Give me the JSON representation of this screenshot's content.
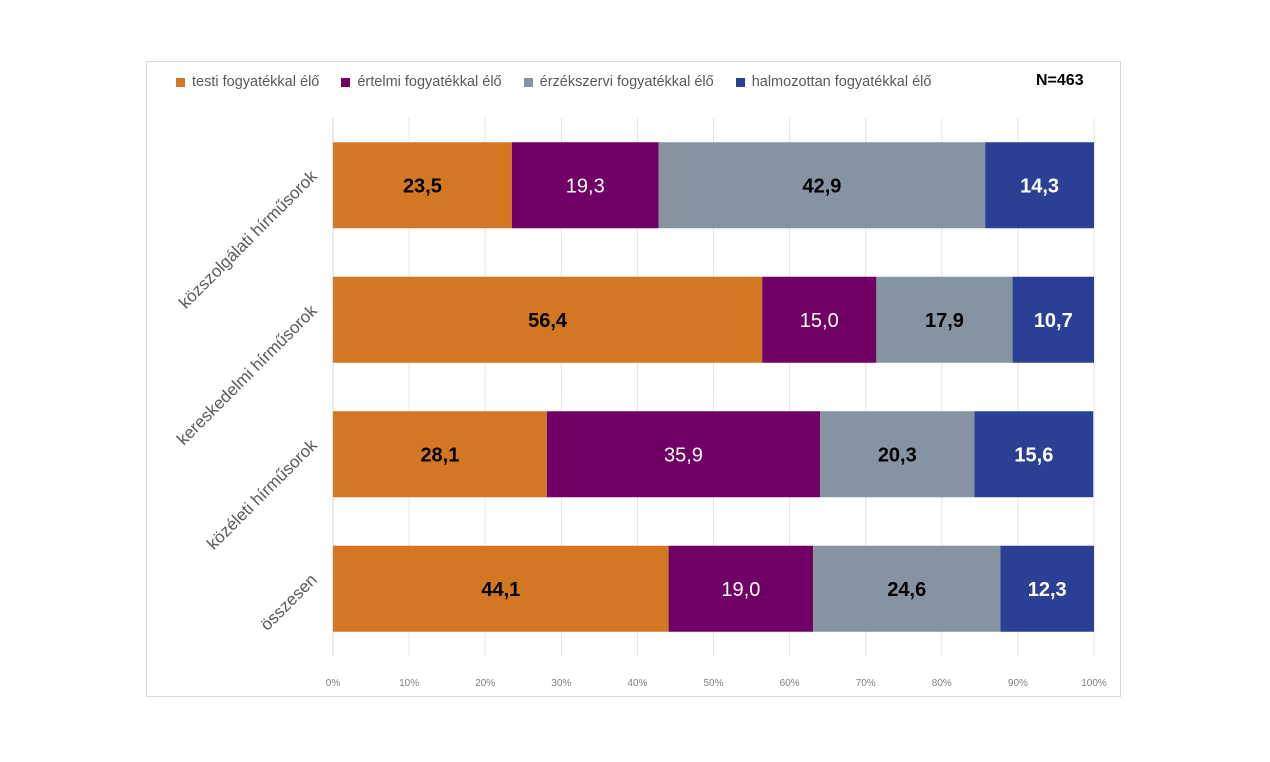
{
  "chart_data": {
    "type": "bar",
    "orientation": "horizontal",
    "stacked": "percent",
    "title": "",
    "annotation": "N=463",
    "xlabel": "",
    "ylabel": "",
    "xlim": [
      0,
      100
    ],
    "grid": true,
    "legend_position": "top",
    "x_ticks": [
      "0%",
      "10%",
      "20%",
      "30%",
      "40%",
      "50%",
      "60%",
      "70%",
      "80%",
      "90%",
      "100%"
    ],
    "categories": [
      "közszolgálati hírműsorok",
      "kereskedelmi hírműsorok",
      "közéleti hírműsorok",
      "összesen"
    ],
    "series": [
      {
        "name": "testi fogyatékkal élő",
        "color": "#D47722",
        "label_color": "#000000",
        "label_bold": true,
        "values": [
          23.5,
          56.4,
          28.1,
          44.1
        ],
        "labels": [
          "23,5",
          "56,4",
          "28,1",
          "44,1"
        ]
      },
      {
        "name": "értelmi fogyatékkal élő",
        "color": "#700066",
        "label_color": "#ffffff",
        "label_bold": false,
        "values": [
          19.3,
          15.0,
          35.9,
          19.0
        ],
        "labels": [
          "19,3",
          "15,0",
          "35,9",
          "19,0"
        ]
      },
      {
        "name": "érzékszervi fogyatékkal élő",
        "color": "#8594A0",
        "label_color": "#000000",
        "label_bold": true,
        "values": [
          42.9,
          17.9,
          20.3,
          24.6
        ],
        "labels": [
          "42,9",
          "17,9",
          "20,3",
          "24,6"
        ]
      },
      {
        "name": "halmozottan fogyatékkal élő",
        "color": "#2B3F94",
        "label_color": "#ffffff",
        "label_bold": true,
        "values": [
          14.3,
          10.7,
          15.6,
          12.3
        ],
        "labels": [
          "14,3",
          "10,7",
          "15,6",
          "12,3"
        ]
      }
    ]
  }
}
